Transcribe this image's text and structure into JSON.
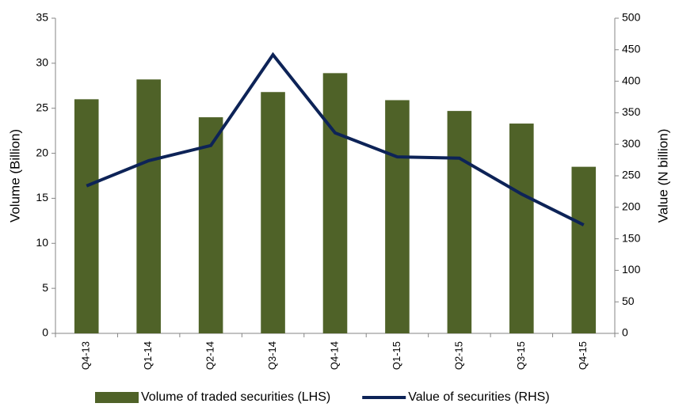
{
  "chart_data": {
    "type": "bar",
    "categories": [
      "Q4-13",
      "Q1-14",
      "Q2-14",
      "Q3-14",
      "Q4-14",
      "Q1-15",
      "Q2-15",
      "Q3-15",
      "Q4-15"
    ],
    "series": [
      {
        "name": "Volume of traded securities (LHS)",
        "type": "bar",
        "color": "#4f6228",
        "values": [
          26.0,
          28.2,
          24.0,
          26.8,
          28.9,
          25.9,
          24.7,
          23.3,
          18.5
        ]
      },
      {
        "name": "Value of securities (RHS)",
        "type": "line",
        "axis": "y2",
        "color": "#0d2357",
        "values": [
          234,
          274,
          298,
          442,
          318,
          280,
          278,
          221,
          172
        ]
      }
    ],
    "ylabel": "Volume (Billion)",
    "y2label": "Value (N billion)",
    "ylim": [
      0,
      35
    ],
    "yticks": [
      0,
      5,
      10,
      15,
      20,
      25,
      30,
      35
    ],
    "y2lim": [
      0,
      500
    ],
    "y2ticks": [
      0,
      50,
      100,
      150,
      200,
      250,
      300,
      350,
      400,
      450,
      500
    ],
    "legend": "bottom"
  }
}
